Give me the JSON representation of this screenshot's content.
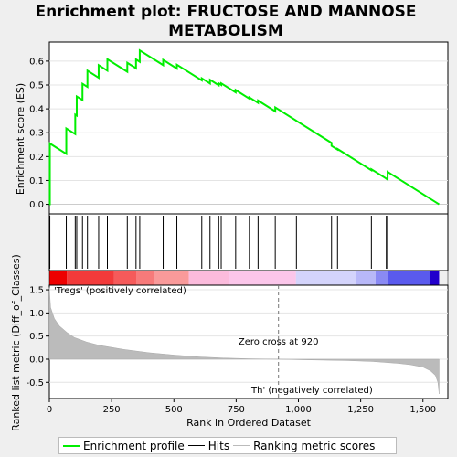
{
  "title_line1": "Enrichment plot: FRUCTOSE AND MANNOSE",
  "title_line2": "METABOLISM",
  "colors": {
    "es_line": "#00ee00",
    "hits": "#000000",
    "metric_fill": "#bbbbbb",
    "zero_cross": "#777777",
    "pos_label": "#cc0000",
    "neg_label": "#0000cc"
  },
  "chart_data": [
    {
      "type": "line",
      "panel": "enrichment-profile",
      "ylabel": "Enrichment score (ES)",
      "xlim": [
        0,
        1600
      ],
      "ylim": [
        -0.04,
        0.68
      ],
      "yticks": [
        0.0,
        0.1,
        0.2,
        0.3,
        0.4,
        0.5,
        0.6
      ],
      "ytick_labels": [
        "0.0",
        "0.1",
        "0.2",
        "0.3",
        "0.4",
        "0.5",
        "0.6"
      ],
      "hit_positions": [
        2,
        68,
        104,
        110,
        133,
        153,
        198,
        233,
        313,
        348,
        363,
        457,
        512,
        612,
        645,
        680,
        690,
        748,
        803,
        838,
        907,
        992,
        1133,
        1157,
        1293,
        1353,
        1358
      ],
      "peaks": [
        0.255,
        0.318,
        0.376,
        0.452,
        0.505,
        0.56,
        0.583,
        0.608,
        0.593,
        0.607,
        0.645,
        0.605,
        0.585,
        0.528,
        0.522,
        0.507,
        0.507,
        0.479,
        0.448,
        0.435,
        0.406,
        0.35,
        0.245,
        0.232,
        0.147,
        0.107,
        0.136
      ],
      "start_value": 0.0,
      "end_value": 0.0,
      "end_x": 1565
    },
    {
      "type": "area",
      "panel": "ranked-metric",
      "title": "",
      "xlabel": "Rank in Ordered Dataset",
      "ylabel": "Ranked list metric (Diff_of_Classes)",
      "xlim": [
        0,
        1600
      ],
      "ylim": [
        -0.85,
        1.6
      ],
      "xticks": [
        0,
        250,
        500,
        750,
        1000,
        1250,
        1500
      ],
      "xtick_labels": [
        "0",
        "250",
        "500",
        "750",
        "1,000",
        "1,250",
        "1,500"
      ],
      "yticks": [
        -0.5,
        0.0,
        0.5,
        1.0,
        1.5
      ],
      "ytick_labels": [
        "-0.5",
        "0.0",
        "0.5",
        "1.0",
        "1.5"
      ],
      "x": [
        0,
        5,
        20,
        40,
        70,
        100,
        150,
        200,
        300,
        400,
        500,
        600,
        700,
        800,
        920,
        1000,
        1100,
        1200,
        1300,
        1400,
        1450,
        1500,
        1530,
        1550,
        1560,
        1565
      ],
      "values": [
        1.55,
        1.12,
        0.88,
        0.72,
        0.58,
        0.47,
        0.37,
        0.3,
        0.21,
        0.14,
        0.09,
        0.05,
        0.025,
        0.01,
        0.0,
        -0.01,
        -0.02,
        -0.03,
        -0.05,
        -0.09,
        -0.12,
        -0.17,
        -0.25,
        -0.35,
        -0.5,
        -0.75
      ],
      "zero_cross_x": 920,
      "zero_cross_label": "Zero cross at 920",
      "pos_label": "'Tregs' (positively correlated)",
      "neg_label": "'Th' (negatively correlated)"
    }
  ],
  "legend": {
    "items": [
      {
        "label": "Enrichment profile"
      },
      {
        "label": "Hits"
      },
      {
        "label": "Ranking metric scores"
      }
    ]
  }
}
